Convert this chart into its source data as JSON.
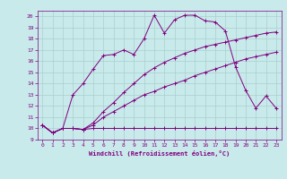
{
  "xlabel": "Windchill (Refroidissement éolien,°C)",
  "xlim": [
    -0.5,
    23.5
  ],
  "ylim": [
    9,
    20.5
  ],
  "xticks": [
    0,
    1,
    2,
    3,
    4,
    5,
    6,
    7,
    8,
    9,
    10,
    11,
    12,
    13,
    14,
    15,
    16,
    17,
    18,
    19,
    20,
    21,
    22,
    23
  ],
  "yticks": [
    9,
    10,
    11,
    12,
    13,
    14,
    15,
    16,
    17,
    18,
    19,
    20
  ],
  "bg_color": "#c8eaea",
  "grid_color": "#aacece",
  "line_color": "#800080",
  "line1_x": [
    0,
    1,
    2,
    3,
    4,
    5,
    6,
    7,
    8,
    9,
    10,
    11,
    12,
    13,
    14,
    15,
    16,
    17,
    18,
    19,
    20,
    21,
    22,
    23
  ],
  "line1_y": [
    10.3,
    9.6,
    10.0,
    10.0,
    9.9,
    10.0,
    10.0,
    10.0,
    10.0,
    10.0,
    10.0,
    10.0,
    10.0,
    10.0,
    10.0,
    10.0,
    10.0,
    10.0,
    10.0,
    10.0,
    10.0,
    10.0,
    10.0,
    10.0
  ],
  "line2_x": [
    0,
    1,
    2,
    3,
    4,
    5,
    6,
    7,
    8,
    9,
    10,
    11,
    12,
    13,
    14,
    15,
    16,
    17,
    18,
    19,
    20,
    21,
    22,
    23
  ],
  "line2_y": [
    10.3,
    9.6,
    10.0,
    10.0,
    9.9,
    10.3,
    11.0,
    11.5,
    12.0,
    12.5,
    13.0,
    13.3,
    13.7,
    14.0,
    14.3,
    14.7,
    15.0,
    15.3,
    15.6,
    15.9,
    16.2,
    16.4,
    16.6,
    16.8
  ],
  "line3_x": [
    0,
    1,
    2,
    3,
    4,
    5,
    6,
    7,
    8,
    9,
    10,
    11,
    12,
    13,
    14,
    15,
    16,
    17,
    18,
    19,
    20,
    21,
    22,
    23
  ],
  "line3_y": [
    10.3,
    9.6,
    10.0,
    10.0,
    9.9,
    10.5,
    11.5,
    12.3,
    13.2,
    14.0,
    14.8,
    15.4,
    15.9,
    16.3,
    16.7,
    17.0,
    17.3,
    17.5,
    17.7,
    17.9,
    18.1,
    18.3,
    18.5,
    18.6
  ],
  "line4_x": [
    0,
    1,
    2,
    3,
    4,
    5,
    6,
    7,
    8,
    9,
    10,
    11,
    12,
    13,
    14,
    15,
    16,
    17,
    18,
    19,
    20,
    21,
    22,
    23
  ],
  "line4_y": [
    10.3,
    9.6,
    10.0,
    13.0,
    14.0,
    15.3,
    16.5,
    16.6,
    17.0,
    16.6,
    18.0,
    20.1,
    18.5,
    19.7,
    20.1,
    20.1,
    19.6,
    19.5,
    18.7,
    15.5,
    13.4,
    11.8,
    12.9,
    11.8
  ]
}
